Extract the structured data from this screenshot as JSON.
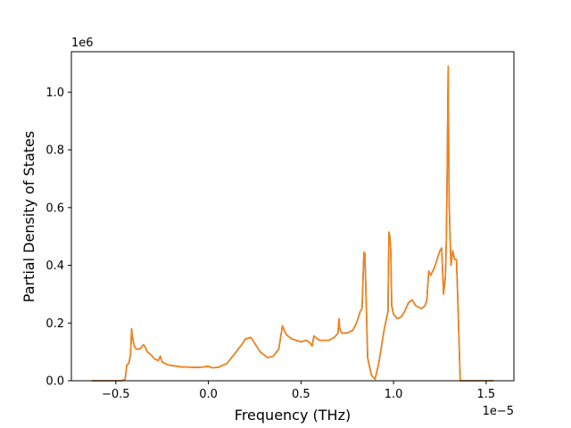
{
  "chart_data": {
    "type": "line",
    "title": "",
    "xlabel": "Frequency (THz)",
    "ylabel": "Partial Density of States",
    "x_offset_label": "1e−5",
    "y_offset_label": "1e6",
    "xlim": [
      -0.74,
      1.65
    ],
    "ylim": [
      0,
      1.14
    ],
    "x_ticks": [
      -0.5,
      0.0,
      0.5,
      1.0,
      1.5
    ],
    "x_tick_labels": [
      "−0.5",
      "0.0",
      "0.5",
      "1.0",
      "1.5"
    ],
    "y_ticks": [
      0.0,
      0.2,
      0.4,
      0.6,
      0.8,
      1.0
    ],
    "y_tick_labels": [
      "0.0",
      "0.2",
      "0.4",
      "0.6",
      "0.8",
      "1.0"
    ],
    "grid": false,
    "series": [
      {
        "color": "#1f77b4",
        "x": [
          -0.63,
          -0.6,
          -0.55,
          -0.5,
          -0.47,
          -0.45,
          -0.44,
          -0.43,
          -0.42,
          -0.415,
          -0.41,
          -0.4,
          -0.39,
          -0.37,
          -0.35,
          -0.34,
          -0.33,
          -0.31,
          -0.29,
          -0.27,
          -0.26,
          -0.25,
          -0.22,
          -0.15,
          -0.1,
          -0.05,
          0.0,
          0.02,
          0.05,
          0.1,
          0.15,
          0.18,
          0.2,
          0.23,
          0.25,
          0.28,
          0.32,
          0.35,
          0.38,
          0.4,
          0.42,
          0.45,
          0.5,
          0.53,
          0.55,
          0.56,
          0.57,
          0.6,
          0.65,
          0.68,
          0.7,
          0.705,
          0.71,
          0.72,
          0.75,
          0.78,
          0.8,
          0.82,
          0.83,
          0.84,
          0.845,
          0.85,
          0.86,
          0.88,
          0.9,
          0.92,
          0.95,
          0.97,
          0.975,
          0.98,
          0.985,
          0.99,
          1.0,
          1.02,
          1.04,
          1.06,
          1.08,
          1.1,
          1.12,
          1.15,
          1.17,
          1.18,
          1.19,
          1.2,
          1.22,
          1.25,
          1.26,
          1.27,
          1.28,
          1.285,
          1.29,
          1.295,
          1.3,
          1.31,
          1.32,
          1.33,
          1.34,
          1.35,
          1.36,
          1.38,
          1.4,
          1.45,
          1.5,
          1.54
        ],
        "y": [
          0.0,
          0.0,
          0.0,
          0.0,
          0.0,
          0.005,
          0.055,
          0.06,
          0.09,
          0.18,
          0.15,
          0.12,
          0.11,
          0.11,
          0.125,
          0.115,
          0.1,
          0.09,
          0.075,
          0.07,
          0.085,
          0.065,
          0.055,
          0.048,
          0.047,
          0.046,
          0.05,
          0.045,
          0.046,
          0.06,
          0.1,
          0.125,
          0.145,
          0.15,
          0.13,
          0.1,
          0.08,
          0.085,
          0.11,
          0.19,
          0.16,
          0.145,
          0.135,
          0.14,
          0.13,
          0.12,
          0.155,
          0.14,
          0.14,
          0.15,
          0.165,
          0.215,
          0.18,
          0.165,
          0.165,
          0.175,
          0.2,
          0.24,
          0.25,
          0.445,
          0.44,
          0.33,
          0.08,
          0.02,
          0.005,
          0.06,
          0.18,
          0.24,
          0.515,
          0.5,
          0.45,
          0.26,
          0.23,
          0.215,
          0.22,
          0.24,
          0.27,
          0.28,
          0.26,
          0.25,
          0.26,
          0.28,
          0.38,
          0.365,
          0.39,
          0.45,
          0.46,
          0.3,
          0.36,
          0.48,
          0.75,
          1.09,
          0.62,
          0.4,
          0.45,
          0.42,
          0.42,
          0.22,
          0.0,
          0.0,
          0.0,
          0.0,
          0.0,
          0.0
        ]
      },
      {
        "color": "#ff7f0e",
        "x": [
          -0.63,
          -0.6,
          -0.55,
          -0.5,
          -0.47,
          -0.45,
          -0.44,
          -0.43,
          -0.42,
          -0.415,
          -0.41,
          -0.4,
          -0.39,
          -0.37,
          -0.35,
          -0.34,
          -0.33,
          -0.31,
          -0.29,
          -0.27,
          -0.26,
          -0.25,
          -0.22,
          -0.15,
          -0.1,
          -0.05,
          0.0,
          0.02,
          0.05,
          0.1,
          0.15,
          0.18,
          0.2,
          0.23,
          0.25,
          0.28,
          0.32,
          0.35,
          0.38,
          0.4,
          0.42,
          0.45,
          0.5,
          0.53,
          0.55,
          0.56,
          0.57,
          0.6,
          0.65,
          0.68,
          0.7,
          0.705,
          0.71,
          0.72,
          0.75,
          0.78,
          0.8,
          0.82,
          0.83,
          0.84,
          0.845,
          0.85,
          0.86,
          0.88,
          0.9,
          0.92,
          0.95,
          0.97,
          0.975,
          0.98,
          0.985,
          0.99,
          1.0,
          1.02,
          1.04,
          1.06,
          1.08,
          1.1,
          1.12,
          1.15,
          1.17,
          1.18,
          1.19,
          1.2,
          1.22,
          1.25,
          1.26,
          1.27,
          1.28,
          1.285,
          1.29,
          1.295,
          1.3,
          1.31,
          1.32,
          1.33,
          1.34,
          1.35,
          1.36,
          1.38,
          1.4,
          1.45,
          1.5,
          1.54
        ],
        "y": [
          0.0,
          0.0,
          0.0,
          0.0,
          0.0,
          0.005,
          0.055,
          0.06,
          0.09,
          0.18,
          0.15,
          0.12,
          0.11,
          0.11,
          0.125,
          0.115,
          0.1,
          0.09,
          0.075,
          0.07,
          0.085,
          0.065,
          0.055,
          0.048,
          0.047,
          0.046,
          0.05,
          0.045,
          0.046,
          0.06,
          0.1,
          0.125,
          0.145,
          0.15,
          0.13,
          0.1,
          0.08,
          0.085,
          0.11,
          0.19,
          0.16,
          0.145,
          0.135,
          0.14,
          0.13,
          0.12,
          0.155,
          0.14,
          0.14,
          0.15,
          0.165,
          0.215,
          0.18,
          0.165,
          0.165,
          0.175,
          0.2,
          0.24,
          0.25,
          0.445,
          0.44,
          0.33,
          0.08,
          0.02,
          0.005,
          0.06,
          0.18,
          0.24,
          0.515,
          0.5,
          0.45,
          0.26,
          0.23,
          0.215,
          0.22,
          0.24,
          0.27,
          0.28,
          0.26,
          0.25,
          0.26,
          0.28,
          0.38,
          0.365,
          0.39,
          0.45,
          0.46,
          0.3,
          0.36,
          0.48,
          0.75,
          1.09,
          0.62,
          0.4,
          0.45,
          0.42,
          0.42,
          0.22,
          0.0,
          0.0,
          0.0,
          0.0,
          0.0,
          0.0
        ]
      }
    ]
  }
}
